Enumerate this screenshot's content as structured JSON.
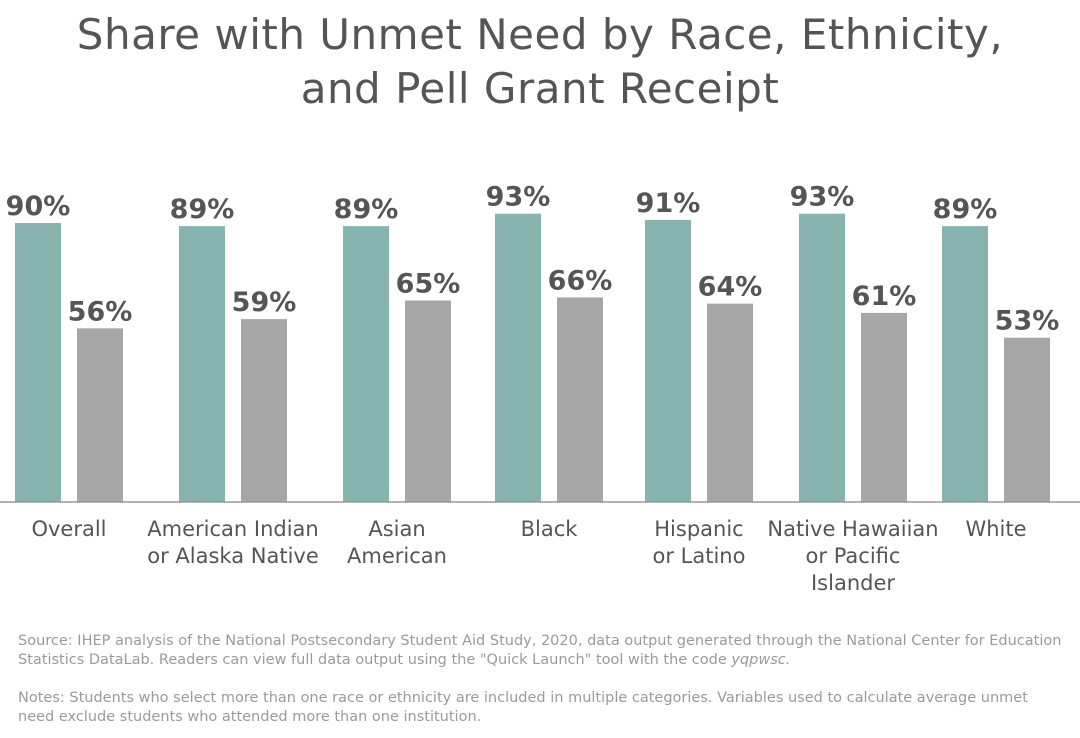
{
  "title_line1": "Share with Unmet Need by Race, Ethnicity,",
  "title_line2": "and Pell Grant Receipt",
  "colors": {
    "series_1": "#86b3ae",
    "series_2": "#a6a6a6",
    "axis": "#999999",
    "label": "#555555"
  },
  "chart_data": {
    "type": "bar",
    "categories": [
      [
        "Overall"
      ],
      [
        "American Indian",
        "or Alaska Native"
      ],
      [
        "Asian",
        "American"
      ],
      [
        "Black"
      ],
      [
        "Hispanic",
        "or Latino"
      ],
      [
        "Native Hawaiian",
        "or Pacific",
        "Islander"
      ],
      [
        "White"
      ]
    ],
    "series": [
      {
        "values": [
          90,
          89,
          89,
          93,
          91,
          93,
          89
        ]
      },
      {
        "values": [
          56,
          59,
          65,
          66,
          64,
          61,
          53
        ]
      }
    ],
    "value_suffix": "%",
    "ylim": [
      0,
      100
    ],
    "grid": false
  },
  "source": {
    "text": "Source: IHEP analysis of the National Postsecondary Student Aid Study, 2020, data output generated through the National Center for Education Statistics DataLab. Readers can view full data output using the \"Quick Launch\" tool with the code",
    "code": "yqpwsc."
  },
  "notes": "Notes: Students who select more than one race or ethnicity are included in multiple categories. Variables used to calculate average unmet need exclude students who attended more than one institution."
}
